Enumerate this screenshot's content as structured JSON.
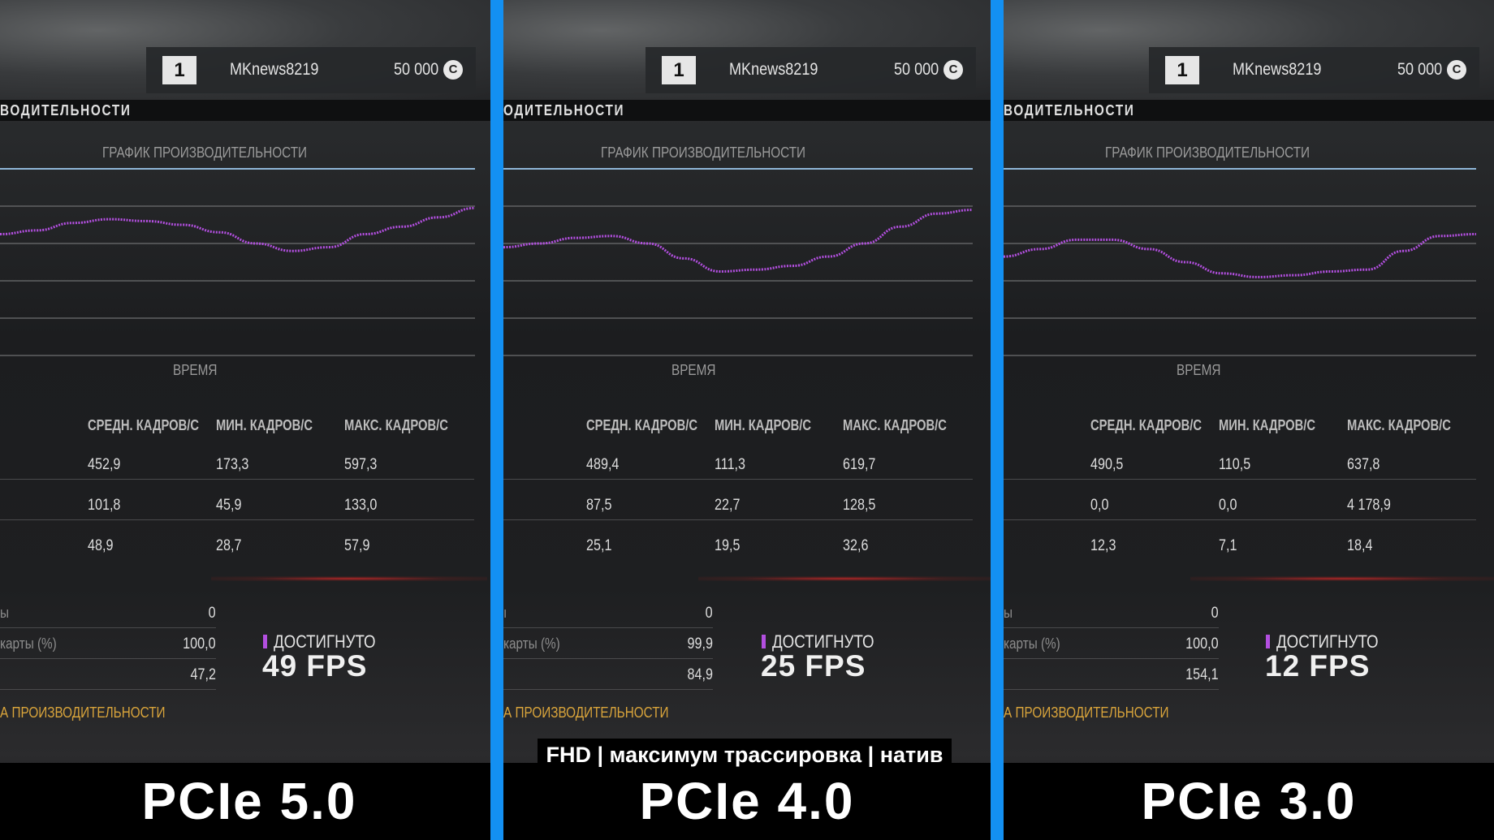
{
  "panels": [
    {
      "id": "pcie5",
      "user": {
        "rank": "1",
        "name": "MKnews8219",
        "money": "50 000",
        "currency": "C"
      },
      "section_title": "ВОДИТЕЛЬНОСТИ",
      "graph_title": "ГРАФИК ПРОИЗВОДИТЕЛЬНОСТИ",
      "graph_xlabel": "ВРЕМЯ",
      "table": {
        "headers": [
          "СРЕДН. КАДРОВ/С",
          "МИН. КАДРОВ/С",
          "МАКС. КАДРОВ/С"
        ],
        "rows": [
          [
            "452,9",
            "173,3",
            "597,3"
          ],
          [
            "101,8",
            "45,9",
            "133,0"
          ],
          [
            "48,9",
            "28,7",
            "57,9"
          ]
        ]
      },
      "stats": [
        {
          "label": "ы",
          "value": "0"
        },
        {
          "label": "карты (%)",
          "value": "100,0"
        },
        {
          "label": "",
          "value": "47,2"
        }
      ],
      "achieved_label": "ДОСТИГНУТО",
      "achieved_fps": "49 FPS",
      "link": "А ПРОИЗВОДИТЕЛЬНОСТИ",
      "caption": "PCIe 5.0",
      "curve": [
        0.35,
        0.33,
        0.29,
        0.27,
        0.28,
        0.3,
        0.34,
        0.4,
        0.44,
        0.42,
        0.35,
        0.31,
        0.26,
        0.21
      ]
    },
    {
      "id": "pcie4",
      "user": {
        "rank": "1",
        "name": "MKnews8219",
        "money": "50 000",
        "currency": "C"
      },
      "section_title": "ОДИТЕЛЬНОСТИ",
      "graph_title": "ГРАФИК ПРОИЗВОДИТЕЛЬНОСТИ",
      "graph_xlabel": "ВРЕМЯ",
      "table": {
        "headers": [
          "СРЕДН. КАДРОВ/С",
          "МИН. КАДРОВ/С",
          "МАКС. КАДРОВ/С"
        ],
        "rows": [
          [
            "489,4",
            "111,3",
            "619,7"
          ],
          [
            "87,5",
            "22,7",
            "128,5"
          ],
          [
            "25,1",
            "19,5",
            "32,6"
          ]
        ]
      },
      "stats": [
        {
          "label": "ı",
          "value": "0"
        },
        {
          "label": "карты (%)",
          "value": "99,9"
        },
        {
          "label": "",
          "value": "84,9"
        }
      ],
      "achieved_label": "ДОСТИГНУТО",
      "achieved_fps": "25 FPS",
      "link": "А ПРОИЗВОДИТЕЛЬНОСТИ",
      "caption": "PCIe 4.0",
      "subtitle": "FHD | максимум трассировка | натив",
      "curve": [
        0.42,
        0.4,
        0.37,
        0.36,
        0.4,
        0.48,
        0.55,
        0.54,
        0.52,
        0.47,
        0.4,
        0.31,
        0.24,
        0.22
      ]
    },
    {
      "id": "pcie3",
      "user": {
        "rank": "1",
        "name": "MKnews8219",
        "money": "50 000",
        "currency": "C"
      },
      "section_title": "ВОДИТЕЛЬНОСТИ",
      "graph_title": "ГРАФИК ПРОИЗВОДИТЕЛЬНОСТИ",
      "graph_xlabel": "ВРЕМЯ",
      "table": {
        "headers": [
          "СРЕДН. КАДРОВ/С",
          "МИН. КАДРОВ/С",
          "МАКС. КАДРОВ/С"
        ],
        "rows": [
          [
            "490,5",
            "110,5",
            "637,8"
          ],
          [
            "0,0",
            "0,0",
            "4 178,9"
          ],
          [
            "12,3",
            "7,1",
            "18,4"
          ]
        ]
      },
      "stats": [
        {
          "label": "ы",
          "value": "0"
        },
        {
          "label": "карты (%)",
          "value": "100,0"
        },
        {
          "label": "",
          "value": "154,1"
        }
      ],
      "achieved_label": "ДОСТИГНУТО",
      "achieved_fps": "12 FPS",
      "link": "А ПРОИЗВОДИТЕЛЬНОСТИ",
      "caption": "PCIe 3.0",
      "curve": [
        0.47,
        0.43,
        0.38,
        0.38,
        0.43,
        0.5,
        0.56,
        0.58,
        0.57,
        0.55,
        0.54,
        0.44,
        0.36,
        0.35
      ]
    }
  ],
  "colors": {
    "divider": "#1390f2",
    "curve": "#b34fe0",
    "link": "#d9a43b"
  }
}
